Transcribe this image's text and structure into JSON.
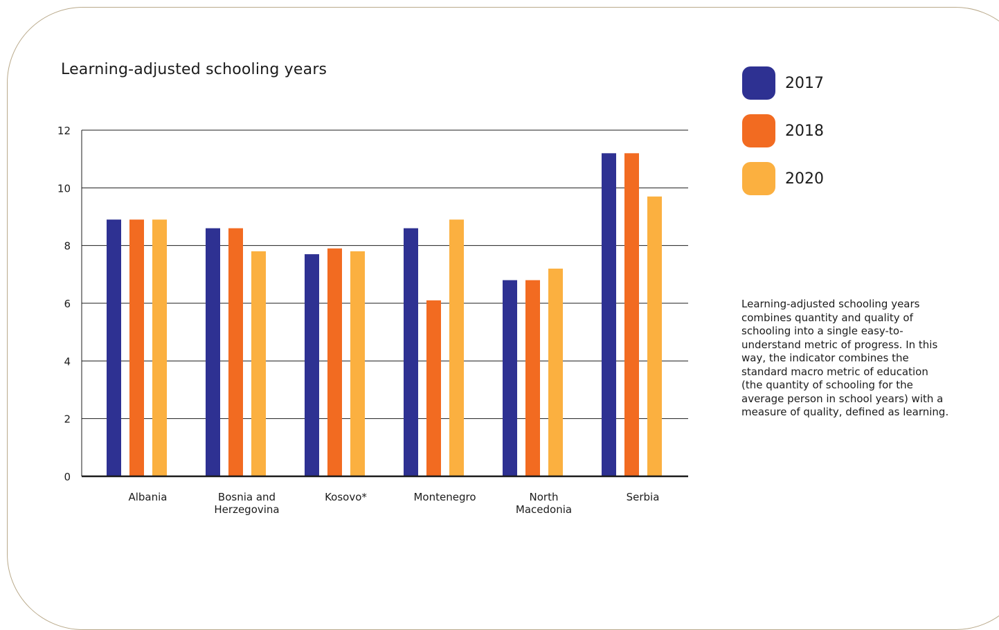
{
  "legend": [
    {
      "label": "2017",
      "color": "#2e3192"
    },
    {
      "label": "2018",
      "color": "#f26b21"
    },
    {
      "label": "2020",
      "color": "#fbb040"
    }
  ],
  "note": "Learning-adjusted schooling years combines quantity and quality of schooling into a single easy-to-understand metric of progress. In this way, the indicator combines the standard macro metric of education (the quantity of schooling for the average person in school years) with a measure of quality, defined as learning.",
  "chart_data": {
    "type": "bar",
    "title": "Learning-adjusted schooling years",
    "xlabel": "",
    "ylabel": "",
    "ylim": [
      0,
      12
    ],
    "yticks": [
      0,
      2,
      4,
      6,
      8,
      10,
      12
    ],
    "grid": true,
    "legend_position": "right",
    "categories": [
      [
        "Albania"
      ],
      [
        "Bosnia and",
        "Herzegovina"
      ],
      [
        "Kosovo*"
      ],
      [
        "Montenegro"
      ],
      [
        "North",
        "Macedonia"
      ],
      [
        "Serbia"
      ]
    ],
    "series": [
      {
        "name": "2017",
        "color": "#2e3192",
        "values": [
          8.9,
          8.6,
          7.7,
          8.6,
          6.8,
          11.2
        ]
      },
      {
        "name": "2018",
        "color": "#f26b21",
        "values": [
          8.9,
          8.6,
          7.9,
          6.1,
          6.8,
          11.2
        ]
      },
      {
        "name": "2020",
        "color": "#fbb040",
        "values": [
          8.9,
          7.8,
          7.8,
          8.9,
          7.2,
          9.7
        ]
      }
    ]
  }
}
